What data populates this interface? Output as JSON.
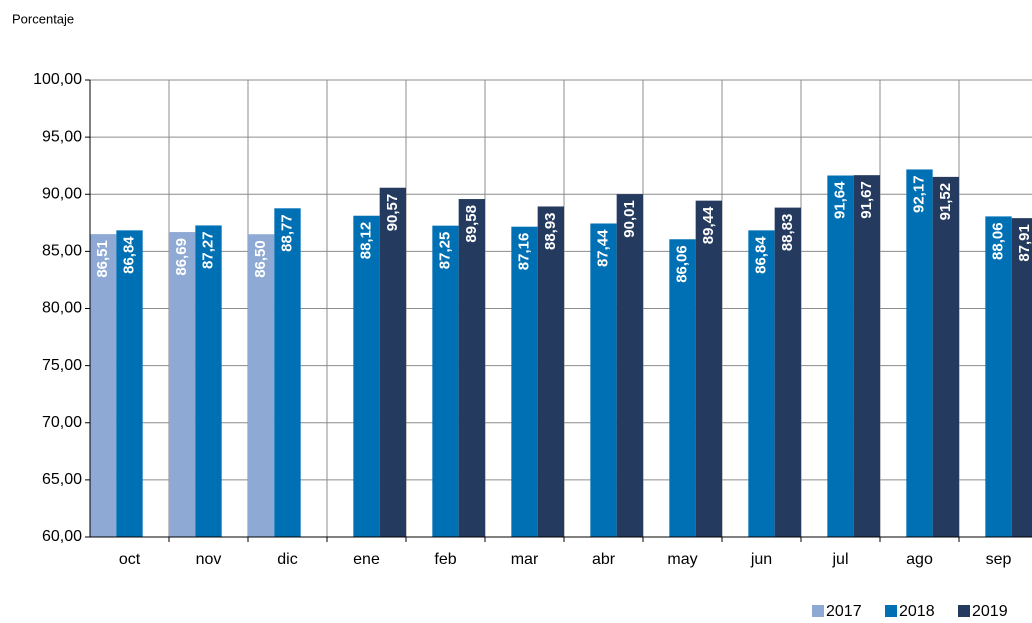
{
  "chart_data": {
    "type": "bar",
    "y_label": "Porcentaje",
    "categories": [
      "oct",
      "nov",
      "dic",
      "ene",
      "feb",
      "mar",
      "abr",
      "may",
      "jun",
      "jul",
      "ago",
      "sep"
    ],
    "series": [
      {
        "name": "2017",
        "color": "#8eaad4",
        "values": [
          86.51,
          86.69,
          86.5,
          null,
          null,
          null,
          null,
          null,
          null,
          null,
          null,
          null
        ],
        "value_labels": [
          "86,51",
          "86,69",
          "86,50",
          null,
          null,
          null,
          null,
          null,
          null,
          null,
          null,
          null
        ]
      },
      {
        "name": "2018",
        "color": "#0070b5",
        "values": [
          86.84,
          87.27,
          88.77,
          88.12,
          87.25,
          87.16,
          87.44,
          86.06,
          86.84,
          91.64,
          92.17,
          88.06
        ],
        "value_labels": [
          "86,84",
          "87,27",
          "88,77",
          "88,12",
          "87,25",
          "87,16",
          "87,44",
          "86,06",
          "86,84",
          "91,64",
          "92,17",
          "88,06"
        ]
      },
      {
        "name": "2019",
        "color": "#243a5e",
        "values": [
          null,
          null,
          null,
          90.57,
          89.58,
          88.93,
          90.01,
          89.44,
          88.83,
          91.67,
          91.52,
          87.91
        ],
        "value_labels": [
          null,
          null,
          null,
          "90,57",
          "89,58",
          "88,93",
          "90,01",
          "89,44",
          "88,83",
          "91,67",
          "91,52",
          "87,91"
        ]
      }
    ],
    "ylim": [
      60,
      100
    ],
    "yticks": [
      {
        "value": 60,
        "label": "60,00"
      },
      {
        "value": 65,
        "label": "65,00"
      },
      {
        "value": 70,
        "label": "70,00"
      },
      {
        "value": 75,
        "label": "75,00"
      },
      {
        "value": 80,
        "label": "80,00"
      },
      {
        "value": 85,
        "label": "85,00"
      },
      {
        "value": 90,
        "label": "90,00"
      },
      {
        "value": 95,
        "label": "95,00"
      },
      {
        "value": 100,
        "label": "100,00"
      }
    ],
    "grid": true,
    "legend": "bottom-right"
  }
}
